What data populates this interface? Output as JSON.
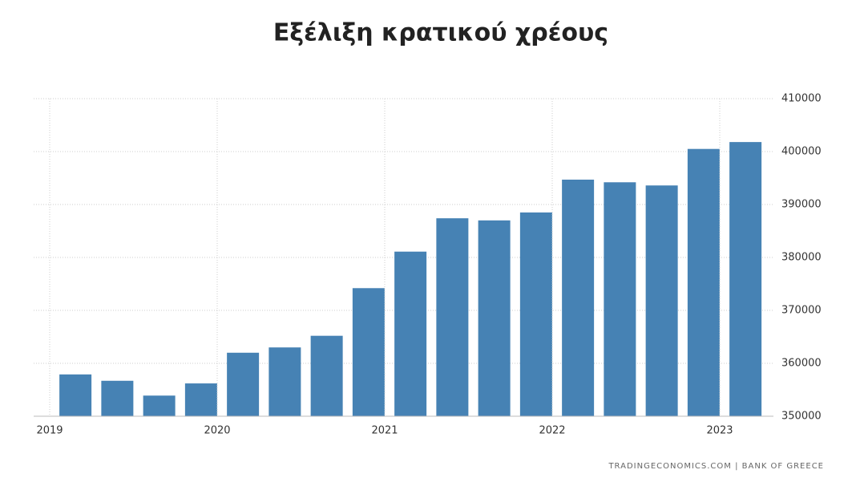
{
  "chart_data": {
    "type": "bar",
    "title": "Εξέλιξη κρατικού χρέους",
    "categories": [
      "2019",
      null,
      null,
      null,
      "2020",
      null,
      null,
      null,
      "2021",
      null,
      null,
      null,
      "2022",
      null,
      null,
      null,
      "2023"
    ],
    "values": [
      357900,
      356700,
      353900,
      356200,
      362000,
      363000,
      365200,
      374200,
      381100,
      387400,
      387000,
      388500,
      394700,
      394200,
      393600,
      400500,
      401800
    ],
    "color": "#4682b4",
    "ylim": [
      350000,
      410000
    ],
    "yticks": [
      350000,
      360000,
      370000,
      380000,
      390000,
      400000,
      410000
    ],
    "grid": true,
    "source": "TRADINGECONOMICS.COM | BANK OF GREECE"
  }
}
